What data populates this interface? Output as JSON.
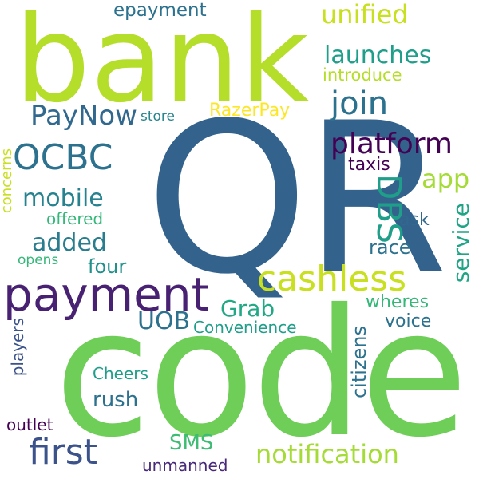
{
  "words": [
    {
      "text": "bank",
      "color": "#b5de2b"
    },
    {
      "text": "QR",
      "color": "#33638d"
    },
    {
      "text": "code",
      "color": "#6ece58"
    },
    {
      "text": "payment",
      "color": "#482173"
    },
    {
      "text": "cashless",
      "color": "#c8e020"
    },
    {
      "text": "unified",
      "color": "#c8e020"
    },
    {
      "text": "epayment",
      "color": "#2c728e"
    },
    {
      "text": "launches",
      "color": "#1f9e89"
    },
    {
      "text": "introduce",
      "color": "#b5de2b"
    },
    {
      "text": "join",
      "color": "#2c728e"
    },
    {
      "text": "PayNow",
      "color": "#31688e"
    },
    {
      "text": "store",
      "color": "#25858e"
    },
    {
      "text": "RazerPay",
      "color": "#fde725"
    },
    {
      "text": "platform",
      "color": "#440154"
    },
    {
      "text": "OCBC",
      "color": "#2c728e"
    },
    {
      "text": "taxis",
      "color": "#440154"
    },
    {
      "text": "app",
      "color": "#a5db36"
    },
    {
      "text": "mobile",
      "color": "#26828e"
    },
    {
      "text": "offered",
      "color": "#35b779"
    },
    {
      "text": "added",
      "color": "#287d8e"
    },
    {
      "text": "DBS",
      "color": "#1f9e89"
    },
    {
      "text": "ask",
      "color": "#31688e"
    },
    {
      "text": "race",
      "color": "#2c728e"
    },
    {
      "text": "four",
      "color": "#21918c"
    },
    {
      "text": "opens",
      "color": "#35b779"
    },
    {
      "text": "concerns",
      "color": "#c8e020"
    },
    {
      "text": "service",
      "color": "#20a486"
    },
    {
      "text": "Grab",
      "color": "#22a884"
    },
    {
      "text": "wheres",
      "color": "#35b779"
    },
    {
      "text": "UOB",
      "color": "#2c728e"
    },
    {
      "text": "Convenience",
      "color": "#1f9e89"
    },
    {
      "text": "voice",
      "color": "#2c728e"
    },
    {
      "text": "players",
      "color": "#3b528b"
    },
    {
      "text": "citizens",
      "color": "#2c728e"
    },
    {
      "text": "Cheers",
      "color": "#1f9e89"
    },
    {
      "text": "rush",
      "color": "#2c728e"
    },
    {
      "text": "outlet",
      "color": "#440154"
    },
    {
      "text": "SMS",
      "color": "#3dbc74"
    },
    {
      "text": "first",
      "color": "#3b528b"
    },
    {
      "text": "notification",
      "color": "#a5db36"
    },
    {
      "text": "unmanned",
      "color": "#482878"
    }
  ]
}
